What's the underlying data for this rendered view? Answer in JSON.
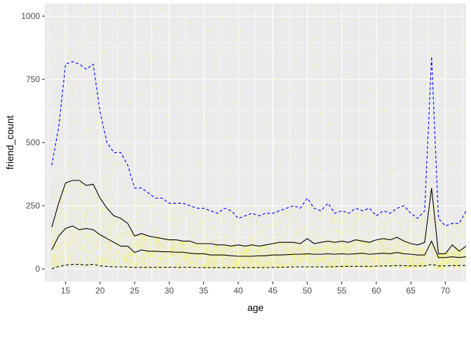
{
  "chart_data": {
    "type": "scatter",
    "xlabel": "age",
    "ylabel": "friend_count",
    "xlim": [
      12,
      73
    ],
    "ylim": [
      -50,
      1050
    ],
    "x_ticks": [
      15,
      20,
      25,
      30,
      35,
      40,
      45,
      50,
      55,
      60,
      65,
      70
    ],
    "y_ticks": [
      0,
      250,
      500,
      750,
      1000
    ],
    "x_tick_labels": [
      "15",
      "20",
      "25",
      "30",
      "35",
      "40",
      "45",
      "50",
      "55",
      "60",
      "65",
      "70"
    ],
    "y_tick_labels": [
      "0",
      "250",
      "500",
      "750",
      "1000"
    ],
    "grid": true,
    "point_color": "#ffff00",
    "point_alpha": 0.05,
    "point_density_notes": "dense near 0-200 for all ages; thinning above; heavier above 500 for ages 13-25",
    "series": [
      {
        "style": "dashed",
        "color": "#0000ff",
        "x": [
          13,
          14,
          15,
          16,
          17,
          18,
          19,
          20,
          21,
          22,
          23,
          24,
          25,
          26,
          27,
          28,
          29,
          30,
          31,
          32,
          33,
          34,
          35,
          36,
          37,
          38,
          39,
          40,
          41,
          42,
          43,
          44,
          45,
          46,
          47,
          48,
          49,
          50,
          51,
          52,
          53,
          54,
          55,
          56,
          57,
          58,
          59,
          60,
          61,
          62,
          63,
          64,
          65,
          66,
          67,
          68,
          69,
          70,
          71,
          72,
          73
        ],
        "values": [
          410,
          560,
          810,
          820,
          810,
          790,
          810,
          620,
          500,
          460,
          460,
          410,
          320,
          320,
          300,
          280,
          280,
          260,
          260,
          260,
          250,
          240,
          240,
          230,
          220,
          240,
          230,
          200,
          210,
          220,
          210,
          220,
          220,
          230,
          240,
          250,
          240,
          280,
          240,
          230,
          260,
          220,
          230,
          220,
          240,
          230,
          240,
          210,
          230,
          220,
          240,
          250,
          220,
          200,
          230,
          840,
          200,
          170,
          180,
          180,
          230
        ]
      },
      {
        "style": "solid",
        "color": "#000000",
        "x": [
          13,
          14,
          15,
          16,
          17,
          18,
          19,
          20,
          21,
          22,
          23,
          24,
          25,
          26,
          27,
          28,
          29,
          30,
          31,
          32,
          33,
          34,
          35,
          36,
          37,
          38,
          39,
          40,
          41,
          42,
          43,
          44,
          45,
          46,
          47,
          48,
          49,
          50,
          51,
          52,
          53,
          54,
          55,
          56,
          57,
          58,
          59,
          60,
          61,
          62,
          63,
          64,
          65,
          66,
          67,
          68,
          69,
          70,
          71,
          72,
          73
        ],
        "values": [
          165,
          260,
          340,
          350,
          350,
          330,
          335,
          280,
          240,
          210,
          200,
          180,
          130,
          140,
          130,
          125,
          120,
          115,
          115,
          110,
          110,
          100,
          100,
          100,
          95,
          95,
          90,
          95,
          90,
          95,
          90,
          95,
          100,
          105,
          105,
          105,
          100,
          120,
          100,
          105,
          110,
          105,
          110,
          105,
          115,
          110,
          105,
          115,
          120,
          115,
          125,
          110,
          100,
          95,
          105,
          320,
          60,
          60,
          95,
          70,
          90
        ]
      },
      {
        "style": "solid",
        "color": "#000000",
        "x": [
          13,
          14,
          15,
          16,
          17,
          18,
          19,
          20,
          21,
          22,
          23,
          24,
          25,
          26,
          27,
          28,
          29,
          30,
          31,
          32,
          33,
          34,
          35,
          36,
          37,
          38,
          39,
          40,
          41,
          42,
          43,
          44,
          45,
          46,
          47,
          48,
          49,
          50,
          51,
          52,
          53,
          54,
          55,
          56,
          57,
          58,
          59,
          60,
          61,
          62,
          63,
          64,
          65,
          66,
          67,
          68,
          69,
          70,
          71,
          72,
          73
        ],
        "values": [
          75,
          130,
          160,
          170,
          155,
          160,
          155,
          135,
          120,
          105,
          90,
          90,
          65,
          75,
          70,
          70,
          68,
          68,
          66,
          66,
          62,
          60,
          60,
          55,
          55,
          55,
          52,
          50,
          50,
          50,
          52,
          52,
          55,
          55,
          56,
          58,
          58,
          60,
          58,
          58,
          60,
          58,
          60,
          58,
          60,
          62,
          58,
          60,
          62,
          60,
          65,
          60,
          58,
          55,
          55,
          110,
          45,
          45,
          48,
          45,
          48
        ]
      },
      {
        "style": "dashed",
        "color": "#000000",
        "x": [
          13,
          14,
          15,
          16,
          17,
          18,
          19,
          20,
          21,
          22,
          23,
          24,
          25,
          26,
          27,
          28,
          29,
          30,
          31,
          32,
          33,
          34,
          35,
          36,
          37,
          38,
          39,
          40,
          41,
          42,
          43,
          44,
          45,
          46,
          47,
          48,
          49,
          50,
          51,
          52,
          53,
          54,
          55,
          56,
          57,
          58,
          59,
          60,
          61,
          62,
          63,
          64,
          65,
          66,
          67,
          68,
          69,
          70,
          71,
          72,
          73
        ],
        "values": [
          0,
          10,
          15,
          18,
          18,
          15,
          18,
          12,
          10,
          8,
          8,
          8,
          5,
          6,
          6,
          6,
          6,
          6,
          6,
          6,
          6,
          5,
          5,
          5,
          5,
          5,
          5,
          5,
          5,
          5,
          5,
          5,
          6,
          6,
          7,
          8,
          8,
          8,
          8,
          8,
          8,
          9,
          10,
          10,
          10,
          10,
          10,
          11,
          12,
          12,
          13,
          13,
          12,
          12,
          12,
          18,
          12,
          12,
          13,
          13,
          14
        ]
      }
    ]
  }
}
